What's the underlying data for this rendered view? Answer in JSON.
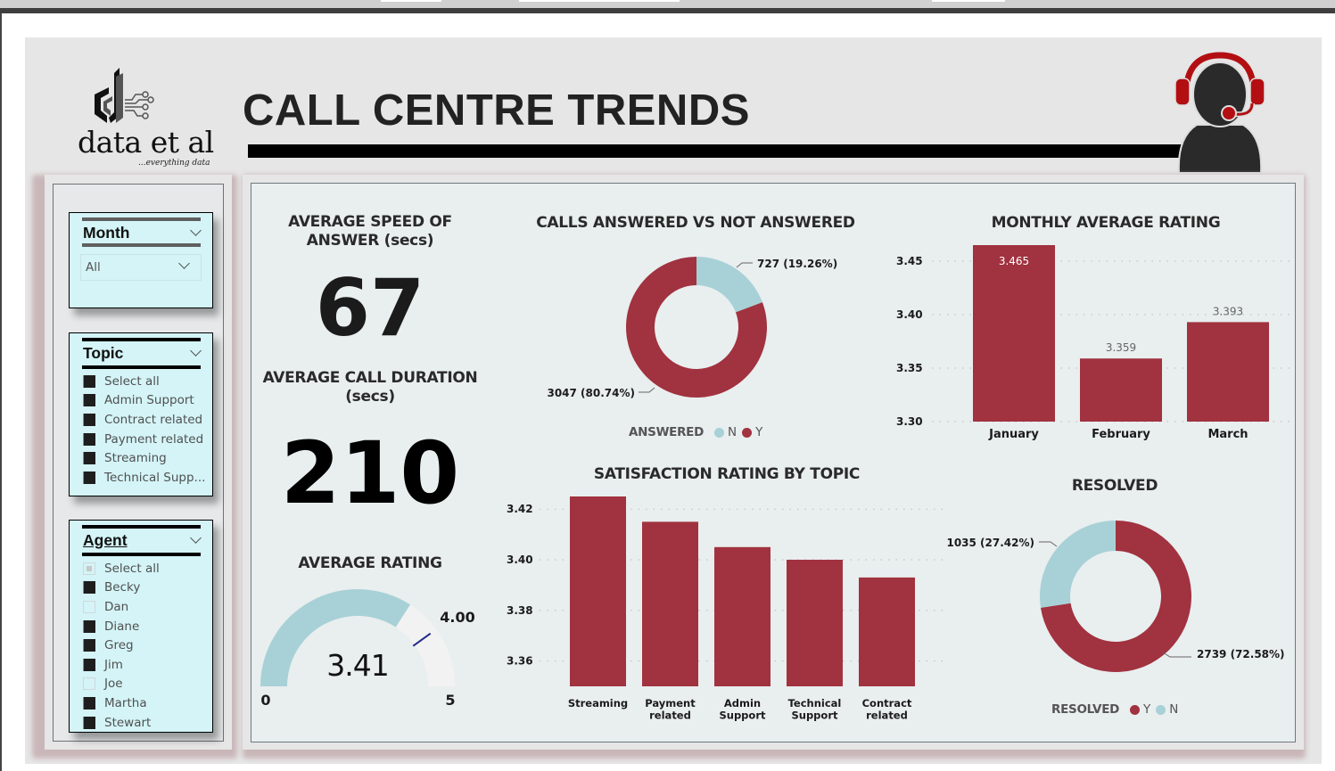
{
  "header": {
    "title": "CALL CENTRE TRENDS",
    "logo_text": "data et al",
    "logo_tagline": "...everything data"
  },
  "slicers": {
    "month": {
      "title": "Month",
      "selected": "All"
    },
    "topic": {
      "title": "Topic",
      "items": [
        {
          "label": "Select all",
          "state": "checked"
        },
        {
          "label": "Admin Support",
          "state": "checked"
        },
        {
          "label": "Contract related",
          "state": "checked"
        },
        {
          "label": "Payment related",
          "state": "checked"
        },
        {
          "label": "Streaming",
          "state": "checked"
        },
        {
          "label": "Technical Supp...",
          "state": "checked"
        }
      ]
    },
    "agent": {
      "title": "Agent",
      "items": [
        {
          "label": "Select all",
          "state": "partial"
        },
        {
          "label": "Becky",
          "state": "checked"
        },
        {
          "label": "Dan",
          "state": "unchecked"
        },
        {
          "label": "Diane",
          "state": "checked"
        },
        {
          "label": "Greg",
          "state": "checked"
        },
        {
          "label": "Jim",
          "state": "checked"
        },
        {
          "label": "Joe",
          "state": "unchecked"
        },
        {
          "label": "Martha",
          "state": "checked"
        },
        {
          "label": "Stewart",
          "state": "checked"
        }
      ]
    }
  },
  "kpis": {
    "speed": {
      "title_line1": "AVERAGE SPEED OF",
      "title_line2": "ANSWER (secs)",
      "value": "67"
    },
    "duration": {
      "title_line1": "AVERAGE CALL DURATION",
      "title_line2": "(secs)",
      "value": "210"
    }
  },
  "colors": {
    "accent": "#a1323f",
    "secondary": "#a7d1d7",
    "gauge_bg": "#f3f2f2",
    "target": "#1f2a8a"
  },
  "chart_data": [
    {
      "type": "gauge",
      "title": "AVERAGE RATING",
      "value": 3.41,
      "value_label": "3.41",
      "min": 0,
      "max": 5,
      "min_label": "0",
      "max_label": "5",
      "target": 4.0,
      "target_label": "4.00"
    },
    {
      "type": "pie",
      "title": "CALLS ANSWERED VS NOT ANSWERED",
      "legend_title": "ANSWERED",
      "legend_placement": "bottom",
      "slices": [
        {
          "name": "N",
          "value": 727,
          "percent": 19.26,
          "label": "727 (19.26%)",
          "color": "#a7d1d7"
        },
        {
          "name": "Y",
          "value": 3047,
          "percent": 80.74,
          "label": "3047 (80.74%)",
          "color": "#a1323f"
        }
      ]
    },
    {
      "type": "bar",
      "title": "MONTHLY AVERAGE RATING",
      "categories": [
        "January",
        "February",
        "March"
      ],
      "values": [
        3.465,
        3.359,
        3.393
      ],
      "data_labels": [
        "3.465",
        "3.359",
        "3.393"
      ],
      "yticks": [
        "3.30",
        "3.35",
        "3.40",
        "3.45"
      ],
      "ylim": [
        3.3,
        3.465
      ],
      "grid": true
    },
    {
      "type": "bar",
      "title": "SATISFACTION RATING BY TOPIC",
      "categories": [
        [
          "Streaming"
        ],
        [
          "Payment",
          "related"
        ],
        [
          "Admin",
          "Support"
        ],
        [
          "Technical",
          "Support"
        ],
        [
          "Contract",
          "related"
        ]
      ],
      "values": [
        3.425,
        3.415,
        3.405,
        3.4,
        3.393
      ],
      "yticks": [
        "3.36",
        "3.38",
        "3.40",
        "3.42"
      ],
      "ylim": [
        3.35,
        3.425
      ],
      "grid": true
    },
    {
      "type": "pie",
      "title": "RESOLVED",
      "legend_title": "RESOLVED",
      "legend_placement": "bottom",
      "slices": [
        {
          "name": "Y",
          "value": 2739,
          "percent": 72.58,
          "label": "2739 (72.58%)",
          "color": "#a1323f"
        },
        {
          "name": "N",
          "value": 1035,
          "percent": 27.42,
          "label": "1035 (27.42%)",
          "color": "#a7d1d7"
        }
      ]
    }
  ]
}
